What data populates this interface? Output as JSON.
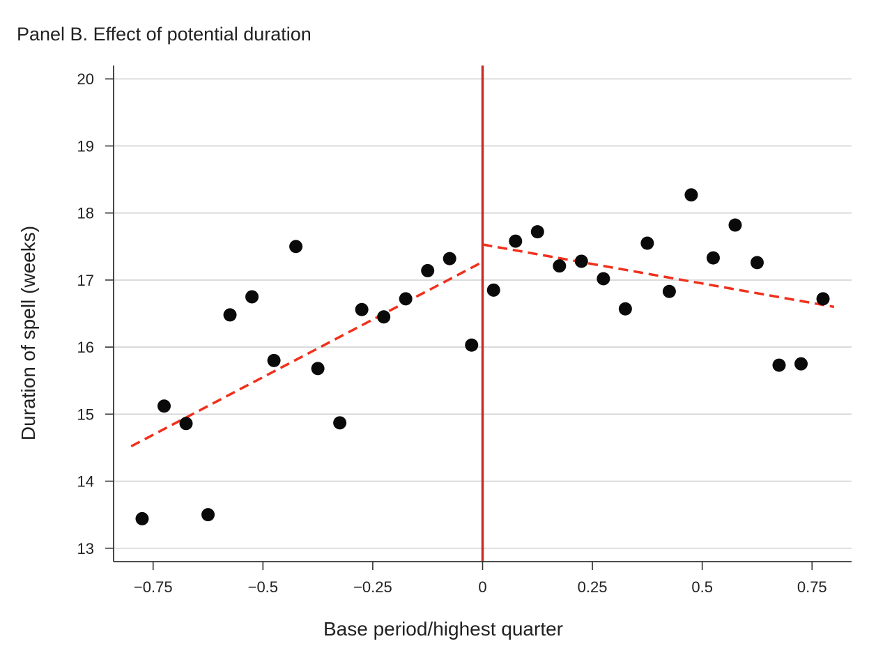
{
  "chart_data": {
    "type": "scatter",
    "title": "Panel B. Effect of potential duration",
    "xlabel": "Base period/highest quarter",
    "ylabel": "Duration of spell (weeks)",
    "xlim": [
      -0.84,
      0.84
    ],
    "ylim": [
      12.8,
      20.2
    ],
    "xticks": [
      -0.75,
      -0.5,
      -0.25,
      0,
      0.25,
      0.5,
      0.75
    ],
    "xtick_labels": [
      "−0.75",
      "−0.5",
      "−0.25",
      "0",
      "0.25",
      "0.5",
      "0.75"
    ],
    "yticks": [
      13,
      14,
      15,
      16,
      17,
      18,
      19,
      20
    ],
    "ytick_labels": [
      "13",
      "14",
      "15",
      "16",
      "17",
      "18",
      "19",
      "20"
    ],
    "grid": "horizontal",
    "threshold_x": 0,
    "points": [
      {
        "x": -0.775,
        "y": 13.44
      },
      {
        "x": -0.725,
        "y": 15.12
      },
      {
        "x": -0.675,
        "y": 14.86
      },
      {
        "x": -0.625,
        "y": 13.5
      },
      {
        "x": -0.575,
        "y": 16.48
      },
      {
        "x": -0.525,
        "y": 16.75
      },
      {
        "x": -0.475,
        "y": 15.8
      },
      {
        "x": -0.425,
        "y": 17.5
      },
      {
        "x": -0.375,
        "y": 15.68
      },
      {
        "x": -0.325,
        "y": 14.87
      },
      {
        "x": -0.275,
        "y": 16.56
      },
      {
        "x": -0.225,
        "y": 16.45
      },
      {
        "x": -0.175,
        "y": 16.72
      },
      {
        "x": -0.125,
        "y": 17.14
      },
      {
        "x": -0.075,
        "y": 17.32
      },
      {
        "x": -0.025,
        "y": 16.03
      },
      {
        "x": 0.025,
        "y": 16.85
      },
      {
        "x": 0.075,
        "y": 17.58
      },
      {
        "x": 0.125,
        "y": 17.72
      },
      {
        "x": 0.175,
        "y": 17.21
      },
      {
        "x": 0.225,
        "y": 17.28
      },
      {
        "x": 0.275,
        "y": 17.02
      },
      {
        "x": 0.325,
        "y": 16.57
      },
      {
        "x": 0.375,
        "y": 17.55
      },
      {
        "x": 0.425,
        "y": 16.83
      },
      {
        "x": 0.475,
        "y": 18.27
      },
      {
        "x": 0.525,
        "y": 17.33
      },
      {
        "x": 0.575,
        "y": 17.82
      },
      {
        "x": 0.625,
        "y": 17.26
      },
      {
        "x": 0.675,
        "y": 15.73
      },
      {
        "x": 0.725,
        "y": 15.75
      },
      {
        "x": 0.775,
        "y": 16.72
      }
    ],
    "fit_lines": [
      {
        "x": [
          -0.8,
          0
        ],
        "y": [
          14.52,
          17.27
        ]
      },
      {
        "x": [
          0,
          0.8
        ],
        "y": [
          17.53,
          16.6
        ]
      }
    ],
    "colors": {
      "points": "#0a0a0a",
      "fit": "#f0301c",
      "threshold": "#cc2a2a",
      "grid": "#d2d2d2",
      "axis": "#333333"
    }
  }
}
